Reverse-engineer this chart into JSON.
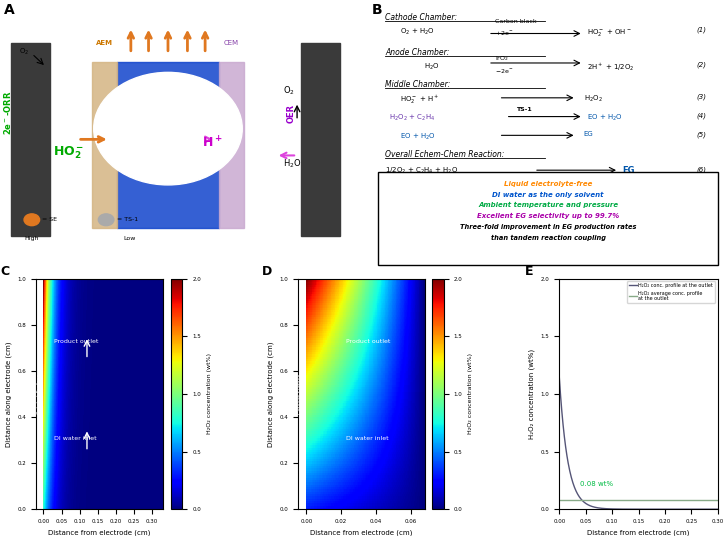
{
  "panel_C": {
    "xlabel": "Distance from electrode (cm)",
    "ylabel": "Distance along electrode (cm)",
    "colorbar_label": "H₂O₂ concentration (wt%)",
    "xlim": [
      -0.02,
      0.33
    ],
    "ylim": [
      0,
      1.0
    ],
    "xticks": [
      0,
      0.05,
      0.1,
      0.15,
      0.2,
      0.25,
      0.3
    ],
    "yticks": [
      0,
      0.2,
      0.4,
      0.6,
      0.8,
      1.0
    ],
    "clim": [
      0,
      2.0
    ],
    "title": "C"
  },
  "panel_D": {
    "xlabel": "Distance from electrode (cm)",
    "ylabel": "Distance along electrode (cm)",
    "colorbar_label": "H₂O₂ concentration (wt%)",
    "xlim": [
      -0.005,
      0.068
    ],
    "ylim": [
      0,
      1.0
    ],
    "xticks": [
      0,
      0.02,
      0.04,
      0.06
    ],
    "yticks": [
      0,
      0.2,
      0.4,
      0.6,
      0.8,
      1.0
    ],
    "clim": [
      0,
      2.0
    ],
    "title": "D"
  },
  "panel_E": {
    "xlabel": "Distance from electrode (cm)",
    "ylabel": "H₂O₂ concentration (wt%)",
    "xlim": [
      0,
      0.3
    ],
    "ylim": [
      0,
      2.0
    ],
    "xticks": [
      0,
      0.05,
      0.1,
      0.15,
      0.2,
      0.25,
      0.3
    ],
    "yticks": [
      0,
      0.5,
      1.0,
      1.5,
      2.0
    ],
    "line1_color": "#555577",
    "line2_color": "#88aa88",
    "line1_label": "H₂O₂ conc. profile at the outlet",
    "line2_label": "H₂O₂ average conc. profile\nat the outlet",
    "avg_annotation": "0.08 wt%",
    "title": "E"
  },
  "background_color": "#ffffff"
}
